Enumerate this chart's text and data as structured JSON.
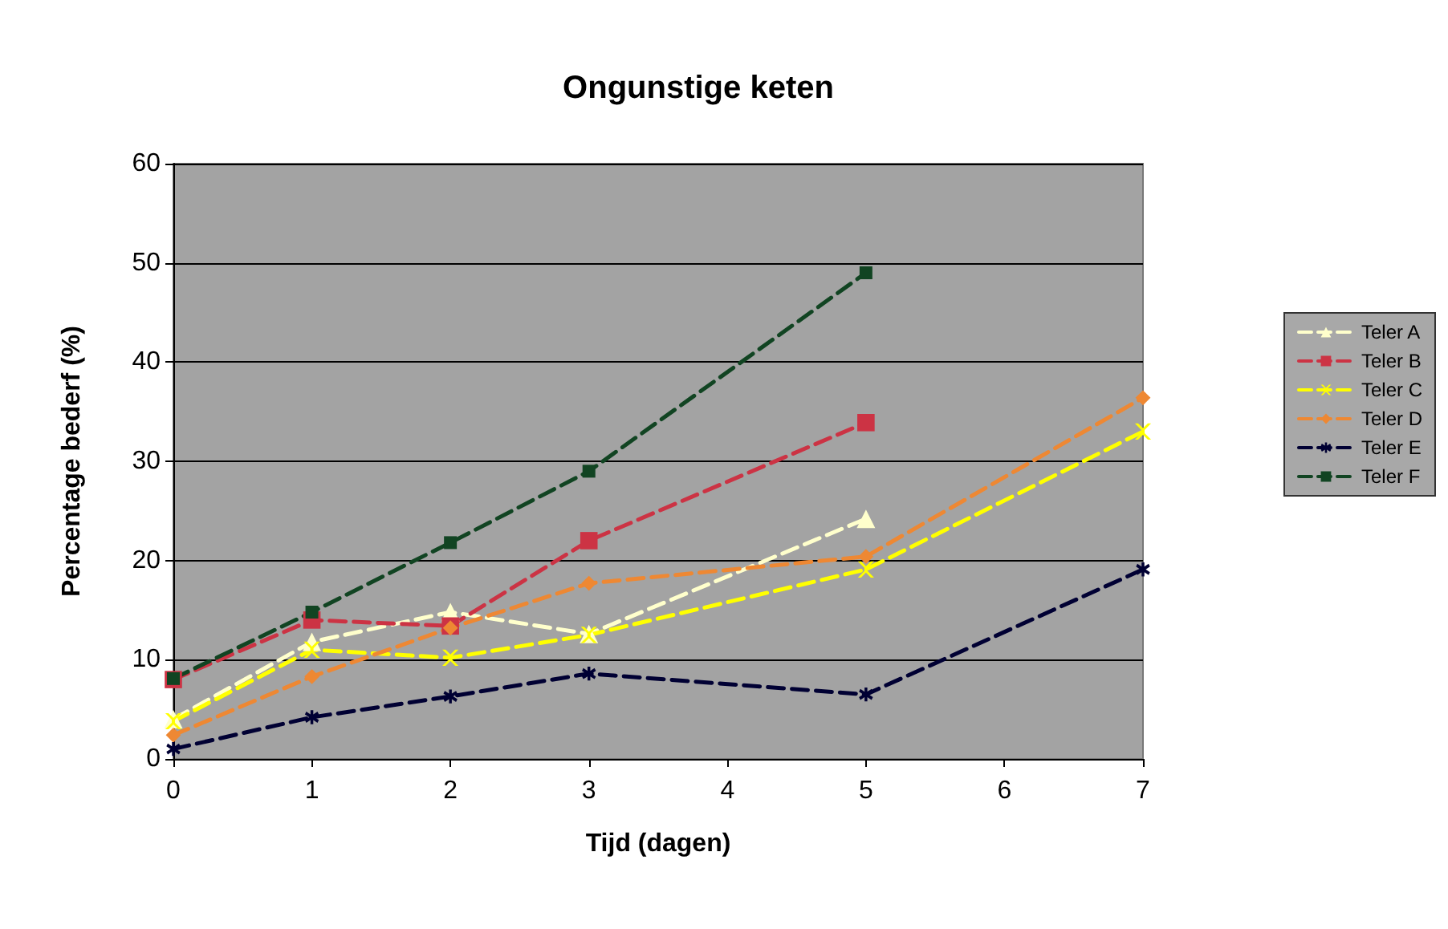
{
  "chart_data": {
    "type": "line",
    "title": "Ongunstige keten",
    "xlabel": "Tijd (dagen)",
    "ylabel": "Percentage bederf (%)",
    "x": [
      0,
      1,
      2,
      3,
      5,
      7
    ],
    "xlim": [
      0,
      7
    ],
    "xticks": [
      0,
      1,
      2,
      3,
      4,
      5,
      6,
      7
    ],
    "ylim": [
      0,
      60
    ],
    "yticks": [
      0,
      10,
      20,
      30,
      40,
      50,
      60
    ],
    "grid": "y",
    "legend": "right",
    "line_style": "dashed",
    "series": [
      {
        "name": "Teler A",
        "color": "#ffffcc",
        "marker": "triangle",
        "values": [
          4,
          11.8,
          14.8,
          12.6,
          24.2,
          null
        ]
      },
      {
        "name": "Teler B",
        "color": "#cc3344",
        "marker": "square",
        "values": [
          8,
          14,
          13.4,
          22,
          33.9,
          null
        ]
      },
      {
        "name": "Teler C",
        "color": "#ffff00",
        "marker": "cross",
        "values": [
          3.8,
          11,
          10.2,
          12.5,
          19.1,
          33
        ]
      },
      {
        "name": "Teler D",
        "color": "#ee8833",
        "marker": "diamond",
        "values": [
          2.4,
          8.3,
          13.2,
          17.7,
          20.4,
          36.4
        ]
      },
      {
        "name": "Teler E",
        "color": "#000033",
        "marker": "star",
        "values": [
          1,
          4.2,
          6.3,
          8.6,
          6.5,
          19.1
        ]
      },
      {
        "name": "Teler F",
        "color": "#114422",
        "marker": "square",
        "values": [
          8.1,
          14.8,
          21.8,
          29,
          49,
          null
        ]
      }
    ]
  }
}
